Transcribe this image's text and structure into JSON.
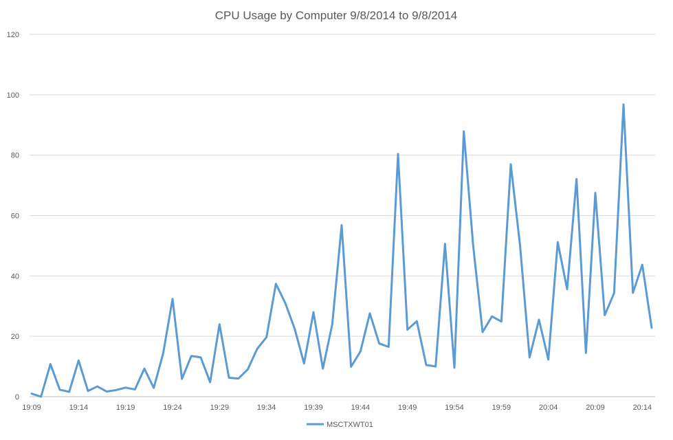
{
  "chart_data": {
    "type": "line",
    "title": "CPU Usage by Computer 9/8/2014 to 9/8/2014",
    "xlabel": "",
    "ylabel": "",
    "ylim": [
      0,
      120
    ],
    "yticks": [
      0,
      20,
      40,
      60,
      80,
      100,
      120
    ],
    "x_tick_labels": [
      "19:09",
      "19:14",
      "19:19",
      "19:24",
      "19:29",
      "19:34",
      "19:39",
      "19:44",
      "19:49",
      "19:54",
      "19:59",
      "20:04",
      "20:09",
      "20:14"
    ],
    "x_tick_every": 5,
    "grid": "horizontal",
    "legend_position": "bottom",
    "series": [
      {
        "name": "MSCTXWT01",
        "color": "#5b9bd5",
        "values": [
          1,
          0,
          10.8,
          2.3,
          1.6,
          12,
          1.9,
          3.4,
          1.7,
          2.2,
          3,
          2.4,
          9.3,
          2.9,
          14.3,
          32.4,
          5.9,
          13.5,
          13,
          4.8,
          24,
          6.3,
          6,
          9,
          15.8,
          19.7,
          37.4,
          31,
          22.5,
          11,
          28,
          9.3,
          24,
          56.8,
          9.9,
          15,
          27.6,
          17.6,
          16.5,
          80.4,
          22.2,
          25,
          10.5,
          10,
          50.6,
          9.6,
          87.9,
          50,
          21.4,
          26.6,
          24.9,
          77,
          49.7,
          13,
          25.5,
          12.3,
          51.2,
          35.6,
          72.1,
          14.5,
          67.5,
          27,
          34.3,
          96.8,
          34.4,
          43.7,
          22.8
        ]
      }
    ]
  }
}
